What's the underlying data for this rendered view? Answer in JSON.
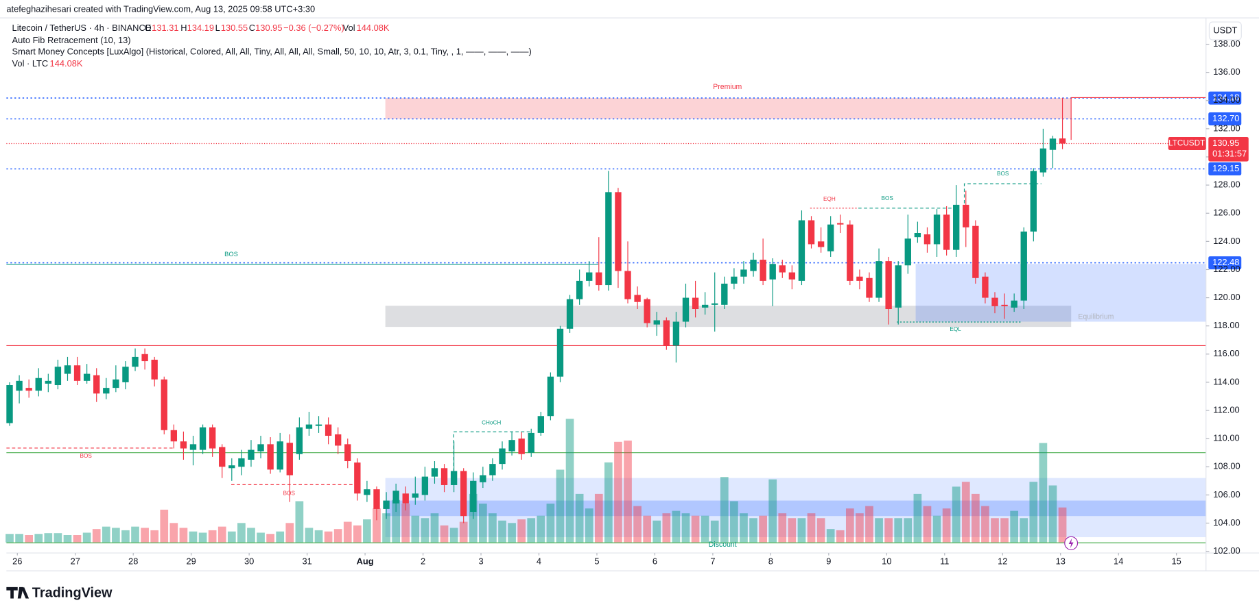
{
  "chart_data": {
    "type": "candlestick",
    "title": "atefeghazihesari created with TradingView.com, Aug 13, 2025 09:58 UTC+3:30",
    "legend": {
      "symbol": "Litecoin / TetherUS · 4h · BINANCE",
      "o": "O",
      "h": "H",
      "l": "L",
      "c": "C",
      "change": "−0.36 (−0.27%)",
      "vol": "Vol"
    },
    "indicators": [
      "Auto Fib Retracement (10, 13)",
      "Smart Money Concepts [LuxAlgo] (Historical, Colored, All, All, Tiny, All, All, All, Small, 50, 10, 10, Atr, 3, 0.1, Tiny, , 1, ——, ——, ——)"
    ],
    "currency": "USDT",
    "symbol_tag": "LTCUSDT",
    "countdown": "01:31:57",
    "brand": "TradingView",
    "up_color": "#089981",
    "down_color": "#f23645",
    "ohlc": {
      "open": [
        111.1,
        113.4,
        113.6,
        113.4,
        113.9,
        113.8,
        114.6,
        115.2,
        114.1,
        114.5,
        113.2,
        113.6,
        114.0,
        115.1,
        116.0,
        115.6,
        114.2,
        110.6,
        109.8,
        109.2,
        109.2,
        110.8,
        109.4,
        107.9,
        108.0,
        108.5,
        109.1,
        109.6,
        107.8,
        109.7,
        108.9,
        110.7,
        110.9,
        111.0,
        110.3,
        109.6,
        108.3,
        106.0,
        106.4,
        105.0,
        105.4,
        106.1,
        105.8,
        106.0,
        107.3,
        107.9,
        106.7,
        107.7,
        104.8,
        106.9,
        107.4,
        108.2,
        109.1,
        110.0,
        109.0,
        110.4,
        111.6,
        114.4,
        117.8,
        119.9,
        121.2,
        121.8,
        120.9,
        127.5,
        121.9,
        120.2,
        119.9,
        118.1,
        118.4,
        116.6,
        118.3,
        120.0,
        119.3,
        119.5,
        119.5,
        121.0,
        121.5,
        121.9,
        122.7,
        121.3,
        122.3,
        121.8,
        121.2,
        125.5,
        124.0,
        123.3,
        125.3,
        125.2,
        121.5,
        121.4,
        120.0,
        122.6,
        119.3,
        122.3,
        124.3,
        124.5,
        123.8,
        125.9,
        123.4,
        126.6,
        125.1,
        121.5,
        120.0,
        119.5,
        119.3,
        119.8,
        124.7,
        128.9,
        130.5,
        131.31
      ],
      "high": [
        114.0,
        114.5,
        114.2,
        115.0,
        114.6,
        115.6,
        115.8,
        115.8,
        115.3,
        115.0,
        114.3,
        115.2,
        115.5,
        116.4,
        116.4,
        115.8,
        114.4,
        111.0,
        110.5,
        110.2,
        111.0,
        111.0,
        109.6,
        108.6,
        109.2,
        109.9,
        110.2,
        110.1,
        110.4,
        110.3,
        111.5,
        111.9,
        111.6,
        111.5,
        110.8,
        110.0,
        108.6,
        107.0,
        106.6,
        106.2,
        106.8,
        106.6,
        107.3,
        108.0,
        108.4,
        108.2,
        109.8,
        107.9,
        107.6,
        108.0,
        108.6,
        109.8,
        110.5,
        110.5,
        110.7,
        111.9,
        114.7,
        118.0,
        120.2,
        122.0,
        122.6,
        124.3,
        129.0,
        127.8,
        124.0,
        120.8,
        120.0,
        119.0,
        118.6,
        119.0,
        121.0,
        121.2,
        120.4,
        121.8,
        121.5,
        122.1,
        122.6,
        123.2,
        124.2,
        122.8,
        122.7,
        122.3,
        126.2,
        125.8,
        125.0,
        125.8,
        125.9,
        125.5,
        122.0,
        121.8,
        123.5,
        122.9,
        122.6,
        125.9,
        125.4,
        125.0,
        126.3,
        126.5,
        128.0,
        127.6,
        125.5,
        121.8,
        120.4,
        120.3,
        120.3,
        125.0,
        129.2,
        132.0,
        131.5,
        134.19
      ],
      "low": [
        110.9,
        112.5,
        112.9,
        113.0,
        113.3,
        113.5,
        114.1,
        113.8,
        113.9,
        112.6,
        112.8,
        113.3,
        113.5,
        114.8,
        114.9,
        113.7,
        110.3,
        109.3,
        108.5,
        108.1,
        108.9,
        108.7,
        107.2,
        107.0,
        107.4,
        108.0,
        108.6,
        107.5,
        107.6,
        105.5,
        108.5,
        110.2,
        110.4,
        109.6,
        108.9,
        107.9,
        105.6,
        105.5,
        104.2,
        104.3,
        104.8,
        104.9,
        105.3,
        105.6,
        106.8,
        106.2,
        106.2,
        104.0,
        104.3,
        106.5,
        107.0,
        107.8,
        108.8,
        108.5,
        108.7,
        110.2,
        111.3,
        114.0,
        117.5,
        119.5,
        120.8,
        120.5,
        120.5,
        120.7,
        119.6,
        119.2,
        117.9,
        117.3,
        116.3,
        115.4,
        117.9,
        118.6,
        118.8,
        117.6,
        119.2,
        120.6,
        121.0,
        121.5,
        120.9,
        119.4,
        121.4,
        120.6,
        120.9,
        123.5,
        123.2,
        122.9,
        124.6,
        120.9,
        120.6,
        119.7,
        119.7,
        118.1,
        118.1,
        121.7,
        123.9,
        123.2,
        122.9,
        123.0,
        122.9,
        123.6,
        121.0,
        119.6,
        118.9,
        118.5,
        119.0,
        119.2,
        124.0,
        128.6,
        129.2,
        130.55
      ],
      "close": [
        113.8,
        114.1,
        113.4,
        114.3,
        114.1,
        115.1,
        115.2,
        114.1,
        114.6,
        113.2,
        113.6,
        114.2,
        115.1,
        115.8,
        115.5,
        114.2,
        110.6,
        109.8,
        109.3,
        109.6,
        110.8,
        109.3,
        108.0,
        108.1,
        108.6,
        109.2,
        109.6,
        107.8,
        109.8,
        107.4,
        110.8,
        111.0,
        111.0,
        110.2,
        109.5,
        108.4,
        106.1,
        106.4,
        105.0,
        105.6,
        106.3,
        105.4,
        106.1,
        107.3,
        107.9,
        106.7,
        107.7,
        104.5,
        107.0,
        107.4,
        108.2,
        109.3,
        109.9,
        108.9,
        110.4,
        111.6,
        114.4,
        117.8,
        119.9,
        121.2,
        121.8,
        120.9,
        127.5,
        121.9,
        119.9,
        119.7,
        118.2,
        118.4,
        116.6,
        118.3,
        120.0,
        119.2,
        119.5,
        119.6,
        121.0,
        121.5,
        122.0,
        122.7,
        121.2,
        122.4,
        121.8,
        121.3,
        125.5,
        123.8,
        123.6,
        125.2,
        125.2,
        121.2,
        121.2,
        120.0,
        122.6,
        119.2,
        122.3,
        124.2,
        124.6,
        123.8,
        125.9,
        123.4,
        126.6,
        125.0,
        121.4,
        120.0,
        119.4,
        119.4,
        119.8,
        124.7,
        129.0,
        130.6,
        131.3,
        130.95
      ]
    },
    "volume": {
      "name": "Vol · LTC",
      "last_value_label": "144.08K",
      "values": [
        35,
        35,
        30,
        35,
        38,
        38,
        30,
        30,
        40,
        55,
        65,
        60,
        50,
        65,
        60,
        50,
        135,
        80,
        60,
        45,
        40,
        50,
        65,
        45,
        80,
        60,
        40,
        35,
        45,
        80,
        170,
        60,
        50,
        45,
        55,
        85,
        70,
        95,
        140,
        120,
        175,
        160,
        110,
        100,
        120,
        70,
        60,
        85,
        200,
        160,
        120,
        90,
        80,
        95,
        100,
        110,
        160,
        300,
        510,
        200,
        140,
        200,
        330,
        415,
        420,
        150,
        110,
        90,
        120,
        130,
        120,
        110,
        110,
        90,
        270,
        170,
        120,
        100,
        110,
        260,
        120,
        100,
        100,
        120,
        100,
        55,
        50,
        140,
        120,
        150,
        100,
        100,
        100,
        100,
        200,
        150,
        110,
        140,
        230,
        250,
        200,
        150,
        100,
        100,
        130,
        100,
        250,
        410,
        235,
        144.08
      ]
    },
    "levels": [
      134.18,
      {
        "value": 132.7,
        "label": "132.70"
      },
      129.15,
      122.48
    ],
    "level_color": "#2962ff",
    "hlines": [
      {
        "value": 116.6,
        "color": "#f23645"
      },
      {
        "value": 109.0,
        "color": "#4caf50"
      },
      {
        "value": 102.6,
        "color": "#4caf50"
      }
    ],
    "zones": [
      {
        "from": 38.9,
        "to": 109.9,
        "low": 132.7,
        "high": 134.18,
        "color": "rgba(242,54,69,0.22)"
      },
      {
        "from": 38.9,
        "to": 109.9,
        "low": 117.93,
        "high": 119.43,
        "color": "rgba(120,123,134,0.25)"
      },
      {
        "from": 93.8,
        "to": 123.86,
        "low": 118.3,
        "high": 122.4,
        "color": "rgba(41,98,255,0.2)"
      },
      {
        "from": 38.9,
        "to": 123.86,
        "low": 103.0,
        "high": 107.2,
        "color": "rgba(41,98,255,0.15)"
      },
      {
        "from": 38.9,
        "to": 123.86,
        "low": 104.5,
        "high": 105.6,
        "color": "rgba(41,98,255,0.25)"
      }
    ],
    "annotations": [
      "Premium",
      "Equilibrium",
      "Discount",
      "BOS",
      "BOS",
      "BOS",
      "CHoCH",
      "EQH",
      "BOS",
      "BOS",
      "EQL"
    ],
    "xlim": [
      -0.33,
      123.86
    ],
    "xticks": [
      {
        "value": 0.8,
        "label": "26"
      },
      {
        "value": 6.8,
        "label": "27"
      },
      {
        "value": 12.8,
        "label": "28"
      },
      {
        "value": 18.8,
        "label": "29"
      },
      {
        "value": 24.8,
        "label": "30"
      },
      {
        "value": 30.8,
        "label": "31"
      },
      {
        "value": 36.8,
        "label": "Aug"
      },
      {
        "value": 42.8,
        "label": "2"
      },
      {
        "value": 48.8,
        "label": "3"
      },
      {
        "value": 54.8,
        "label": "4"
      },
      {
        "value": 60.8,
        "label": "5"
      },
      {
        "value": 66.8,
        "label": "6"
      },
      {
        "value": 72.8,
        "label": "7"
      },
      {
        "value": 78.8,
        "label": "8"
      },
      {
        "value": 84.8,
        "label": "9"
      },
      {
        "value": 90.8,
        "label": "10"
      },
      {
        "value": 96.8,
        "label": "11"
      },
      {
        "value": 102.8,
        "label": "12"
      },
      {
        "value": 108.8,
        "label": "13"
      },
      {
        "value": 114.8,
        "label": "14"
      },
      {
        "value": 120.8,
        "label": "15"
      }
    ],
    "ylim": [
      101.88,
      139.87
    ],
    "yticks": [
      {
        "value": 102,
        "label": "102.00"
      },
      {
        "value": 104,
        "label": "104.00"
      },
      {
        "value": 106,
        "label": "106.00"
      },
      {
        "value": 108,
        "label": "108.00"
      },
      {
        "value": 110,
        "label": "110.00"
      },
      {
        "value": 112,
        "label": "112.00"
      },
      {
        "value": 114,
        "label": "114.00"
      },
      {
        "value": 116,
        "label": "116.00"
      },
      {
        "value": 118,
        "label": "118.00"
      },
      {
        "value": 120,
        "label": "120.00"
      },
      {
        "value": 122,
        "label": "122.00"
      },
      {
        "value": 124,
        "label": "124.00"
      },
      {
        "value": 126,
        "label": "126.00"
      },
      {
        "value": 128,
        "label": "128.00"
      },
      {
        "value": 130,
        "label": "130.00"
      },
      {
        "value": 132,
        "label": "132.00"
      },
      {
        "value": 134,
        "label": "134.00"
      },
      {
        "value": 136,
        "label": "136.00"
      },
      {
        "value": 138,
        "label": "138.00"
      }
    ],
    "grid": false
  }
}
